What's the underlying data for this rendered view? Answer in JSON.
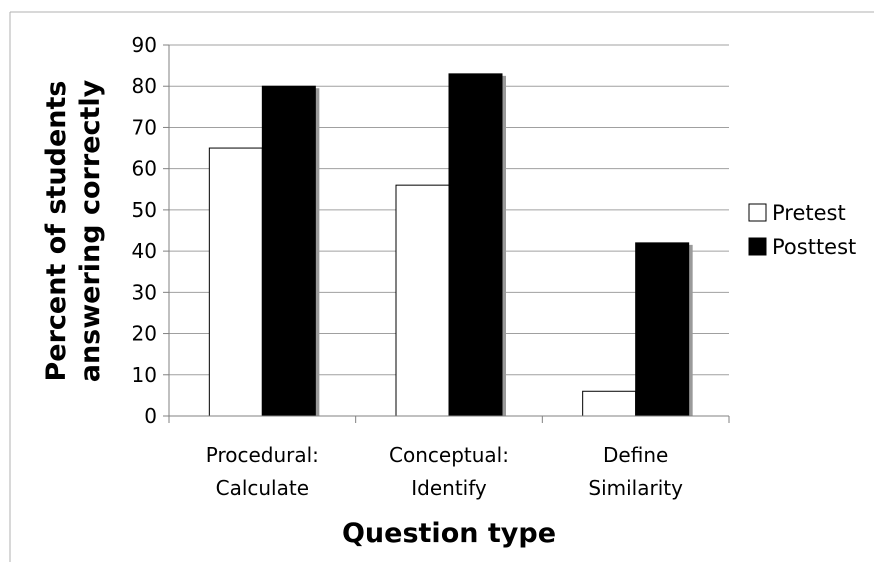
{
  "chart_data": {
    "type": "bar",
    "categories": [
      [
        "Procedural:",
        "Calculate"
      ],
      [
        "Conceptual:",
        "Identify"
      ],
      [
        "Define",
        "Similarity"
      ]
    ],
    "series": [
      {
        "name": "Pretest",
        "values": [
          65,
          56,
          6
        ],
        "color": "#ffffff"
      },
      {
        "name": "Posttest",
        "values": [
          80,
          83,
          42
        ],
        "color": "#000000"
      }
    ],
    "xlabel": "Question type",
    "ylabel": [
      "Percent of students",
      "answering correctly"
    ],
    "ylim": [
      0,
      90
    ],
    "yticks": [
      "0",
      "10",
      "20",
      "30",
      "40",
      "50",
      "60",
      "70",
      "80",
      "90"
    ],
    "grid": true,
    "legend": "right",
    "colors": {
      "grid": "#a0a0a0",
      "axis": "#808080",
      "frame": "#b0b0b0",
      "shadow": "#9a9a9a"
    }
  }
}
